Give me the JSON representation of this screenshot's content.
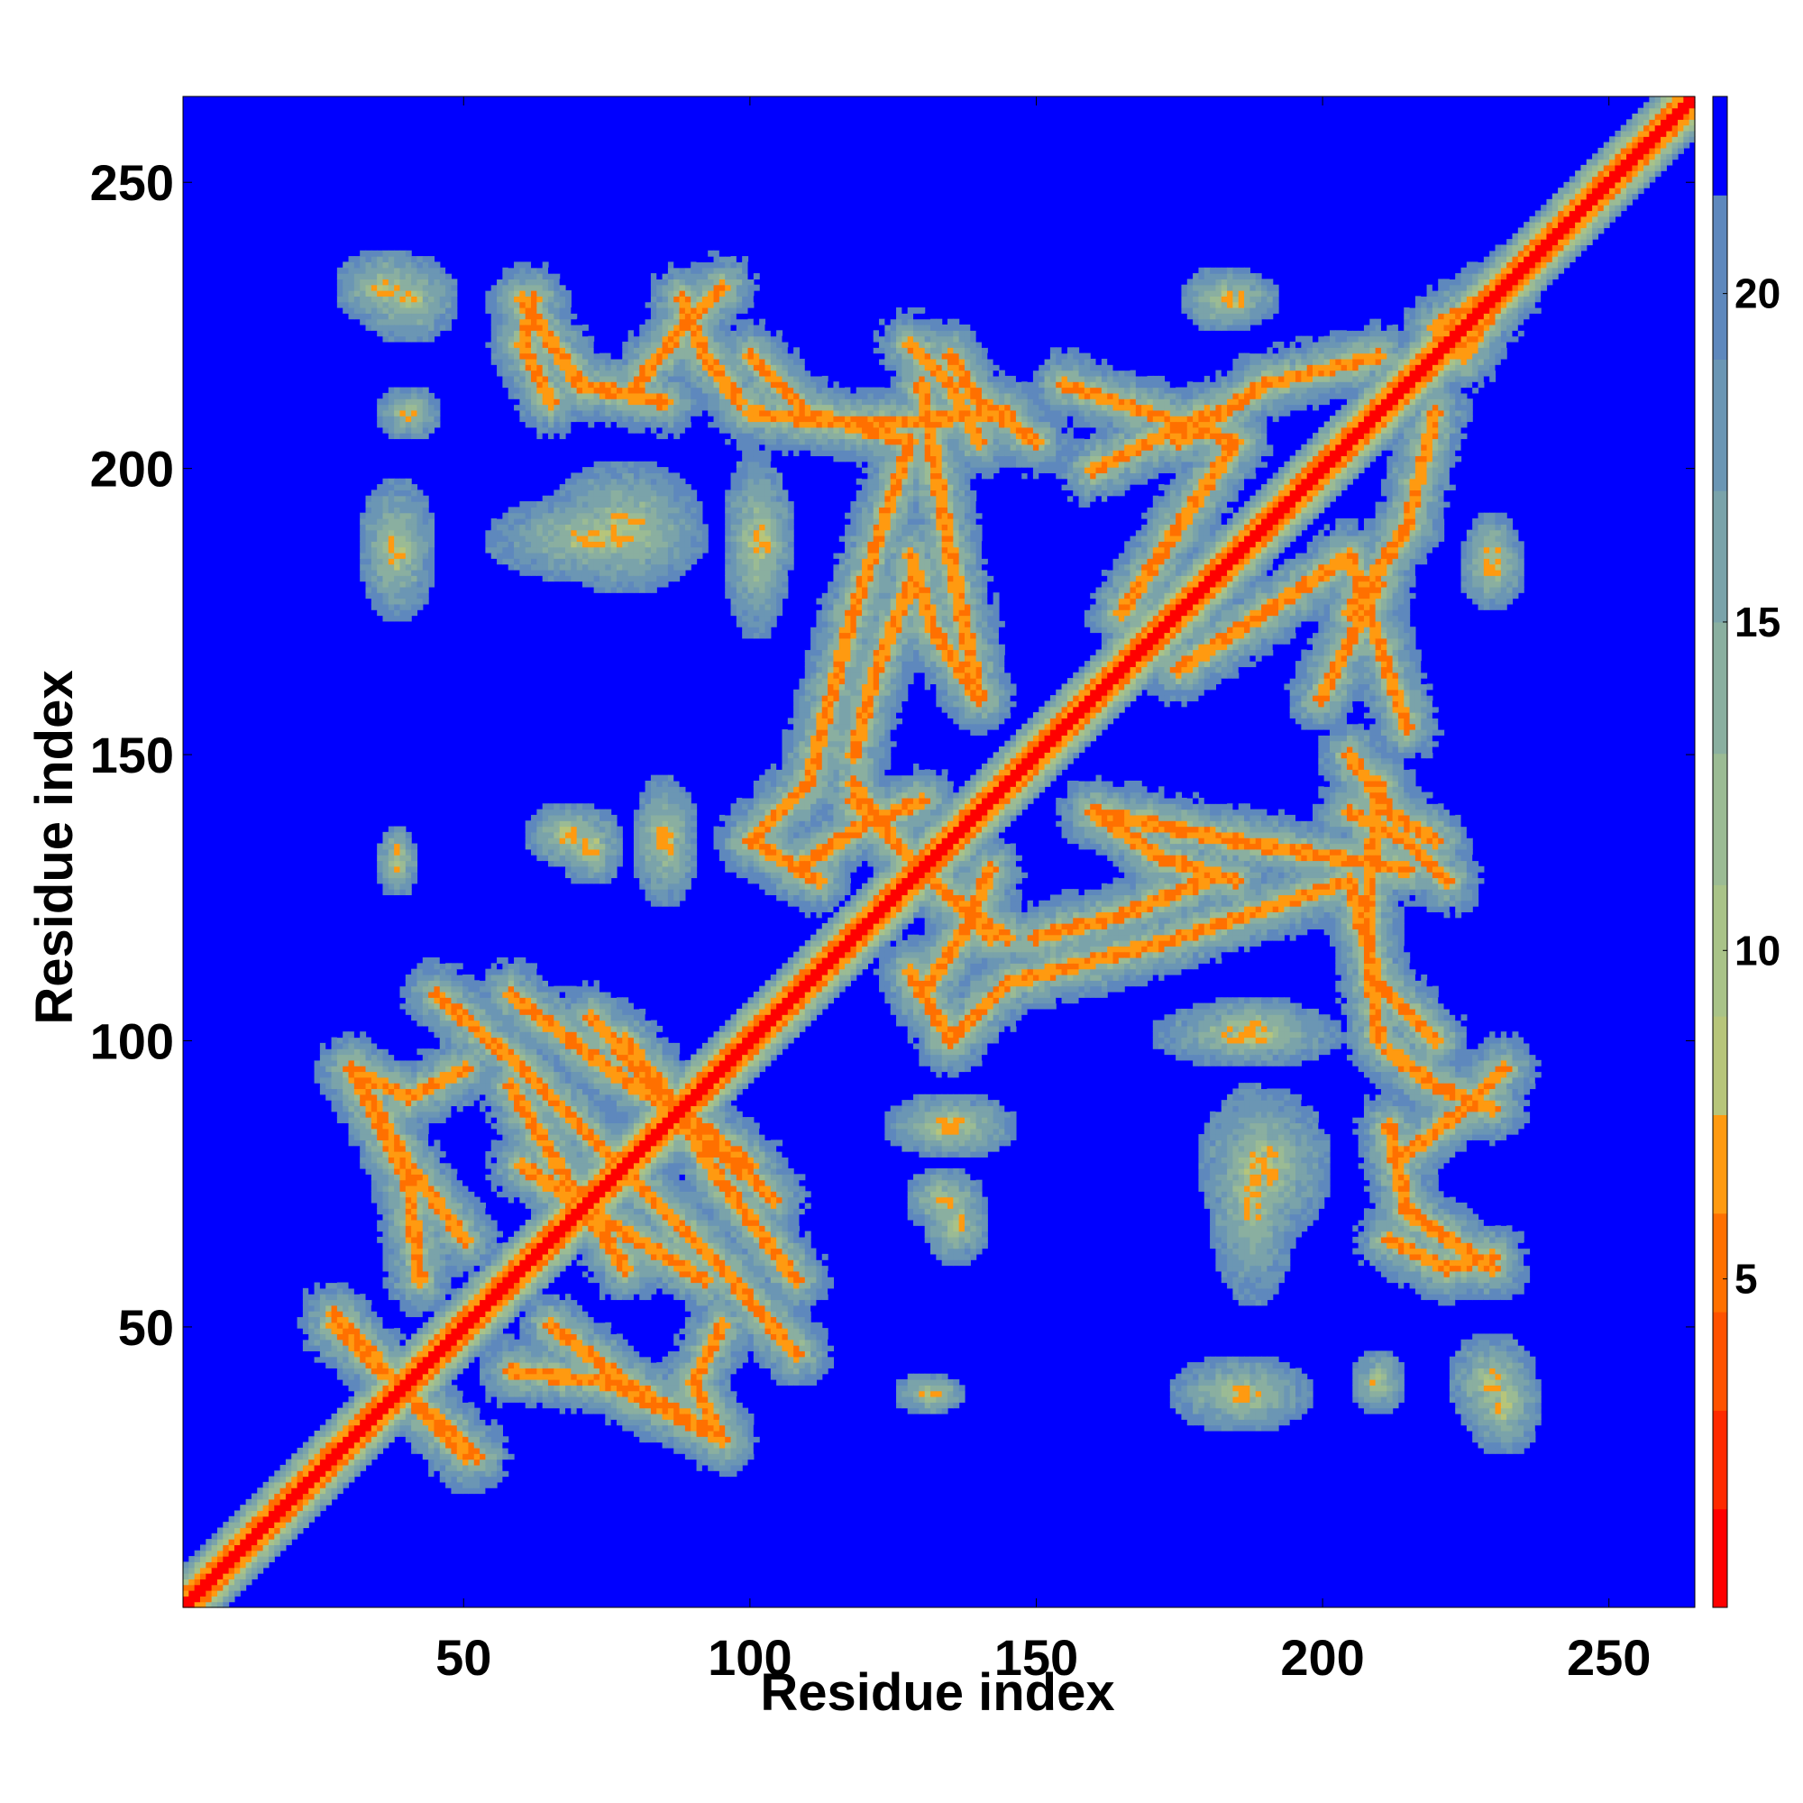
{
  "chart_data": {
    "type": "heatmap",
    "title": "",
    "xlabel": "Residue index",
    "ylabel": "Residue index",
    "xlim": [
      1,
      265
    ],
    "ylim": [
      1,
      265
    ],
    "x_ticks": [
      50,
      100,
      150,
      200,
      250
    ],
    "y_ticks": [
      50,
      100,
      150,
      200,
      250
    ],
    "colorbar": {
      "range": [
        0,
        23
      ],
      "ticks": [
        5,
        10,
        15,
        20
      ],
      "colors": [
        {
          "max": 1.5,
          "color": "#ff0000"
        },
        {
          "max": 3,
          "color": "#ff2a00"
        },
        {
          "max": 4.5,
          "color": "#ff5200"
        },
        {
          "max": 6,
          "color": "#ff7000"
        },
        {
          "max": 7.5,
          "color": "#ff9a10"
        },
        {
          "max": 9,
          "color": "#b7c57a"
        },
        {
          "max": 11,
          "color": "#a9c388"
        },
        {
          "max": 13,
          "color": "#9bbb94"
        },
        {
          "max": 15,
          "color": "#8aafa0"
        },
        {
          "max": 17,
          "color": "#7aa3aa"
        },
        {
          "max": 19,
          "color": "#6b96b4"
        },
        {
          "max": 21.5,
          "color": "#5e88bd"
        },
        {
          "max": 23,
          "color": "#0000ff"
        }
      ],
      "background": "#0000ff"
    },
    "diagonal": {
      "core_color": "#ff0000",
      "edge_color": "#ff8c00",
      "halo_color": "#a6c08e"
    },
    "contact_arcs": [
      {
        "points": [
          [
            27,
            50
          ],
          [
            40,
            38
          ],
          [
            52,
            27
          ]
        ]
      },
      {
        "points": [
          [
            30,
            95
          ],
          [
            40,
            75
          ],
          [
            42,
            58
          ]
        ]
      },
      {
        "points": [
          [
            45,
            108
          ],
          [
            60,
            95
          ],
          [
            75,
            80
          ]
        ]
      },
      {
        "points": [
          [
            58,
            108
          ],
          [
            75,
            95
          ],
          [
            92,
            84
          ]
        ]
      },
      {
        "points": [
          [
            78,
            100
          ],
          [
            90,
            85
          ],
          [
            104,
            72
          ]
        ]
      },
      {
        "points": [
          [
            60,
            78
          ],
          [
            75,
            68
          ],
          [
            92,
            58
          ]
        ]
      },
      {
        "points": [
          [
            65,
            50
          ],
          [
            78,
            40
          ],
          [
            92,
            32
          ]
        ]
      },
      {
        "points": [
          [
            95,
            50
          ],
          [
            90,
            40
          ],
          [
            95,
            30
          ]
        ]
      },
      {
        "points": [
          [
            108,
            130
          ],
          [
            120,
            138
          ],
          [
            130,
            142
          ]
        ]
      },
      {
        "points": [
          [
            118,
            145
          ],
          [
            125,
            135
          ],
          [
            142,
            118
          ]
        ]
      },
      {
        "points": [
          [
            128,
            112
          ],
          [
            135,
            100
          ],
          [
            145,
            110
          ]
        ]
      },
      {
        "points": [
          [
            110,
            145
          ],
          [
            118,
            175
          ],
          [
            128,
            205
          ]
        ]
      },
      {
        "points": [
          [
            140,
            160
          ],
          [
            135,
            185
          ],
          [
            130,
            215
          ]
        ]
      },
      {
        "points": [
          [
            100,
            220
          ],
          [
            110,
            210
          ],
          [
            128,
            205
          ]
        ]
      },
      {
        "points": [
          [
            135,
            220
          ],
          [
            140,
            212
          ],
          [
            150,
            205
          ]
        ]
      },
      {
        "points": [
          [
            60,
            230
          ],
          [
            70,
            215
          ],
          [
            85,
            212
          ]
        ]
      },
      {
        "points": [
          [
            88,
            230
          ],
          [
            92,
            220
          ],
          [
            98,
            212
          ]
        ]
      },
      {
        "points": [
          [
            155,
            215
          ],
          [
            170,
            210
          ],
          [
            185,
            205
          ]
        ]
      },
      {
        "points": [
          [
            175,
            205
          ],
          [
            190,
            215
          ],
          [
            210,
            220
          ]
        ]
      },
      {
        "points": [
          [
            175,
            165
          ],
          [
            190,
            175
          ],
          [
            205,
            185
          ]
        ]
      },
      {
        "points": [
          [
            160,
            140
          ],
          [
            172,
            132
          ],
          [
            185,
            128
          ]
        ]
      },
      {
        "points": [
          [
            150,
            118
          ],
          [
            165,
            122
          ],
          [
            180,
            128
          ]
        ]
      },
      {
        "points": [
          [
            205,
            140
          ],
          [
            215,
            135
          ],
          [
            222,
            128
          ]
        ]
      },
      {
        "points": [
          [
            210,
            145
          ],
          [
            208,
            120
          ],
          [
            210,
            100
          ]
        ]
      },
      {
        "points": [
          [
            215,
            80
          ],
          [
            225,
            88
          ],
          [
            232,
            95
          ]
        ]
      },
      {
        "points": [
          [
            212,
            65
          ],
          [
            222,
            60
          ],
          [
            230,
            62
          ]
        ]
      },
      {
        "points": [
          [
            200,
            160
          ],
          [
            205,
            170
          ],
          [
            210,
            180
          ]
        ]
      },
      {
        "points": [
          [
            220,
            225
          ],
          [
            228,
            230
          ],
          [
            233,
            232
          ]
        ]
      }
    ],
    "contact_blobs": [
      {
        "x": 36,
        "y": 232,
        "rx": 9,
        "ry": 7
      },
      {
        "x": 38,
        "y": 186,
        "rx": 7,
        "ry": 13
      },
      {
        "x": 38,
        "y": 131,
        "rx": 4,
        "ry": 6
      },
      {
        "x": 73,
        "y": 188,
        "rx": 20,
        "ry": 8
      },
      {
        "x": 72,
        "y": 134,
        "rx": 6,
        "ry": 7
      },
      {
        "x": 85,
        "y": 135,
        "rx": 6,
        "ry": 10
      },
      {
        "x": 102,
        "y": 188,
        "rx": 6,
        "ry": 12
      },
      {
        "x": 135,
        "y": 85,
        "rx": 12,
        "ry": 6
      },
      {
        "x": 136,
        "y": 68,
        "rx": 6,
        "ry": 8
      },
      {
        "x": 133,
        "y": 38,
        "rx": 5,
        "ry": 3
      },
      {
        "x": 185,
        "y": 230,
        "rx": 8,
        "ry": 5
      },
      {
        "x": 186,
        "y": 38,
        "rx": 9,
        "ry": 5
      },
      {
        "x": 190,
        "y": 78,
        "rx": 12,
        "ry": 14
      },
      {
        "x": 187,
        "y": 101,
        "rx": 17,
        "ry": 6
      },
      {
        "x": 230,
        "y": 40,
        "rx": 8,
        "ry": 9
      },
      {
        "x": 210,
        "y": 40,
        "rx": 5,
        "ry": 6
      },
      {
        "x": 230,
        "y": 183,
        "rx": 6,
        "ry": 8
      }
    ]
  }
}
